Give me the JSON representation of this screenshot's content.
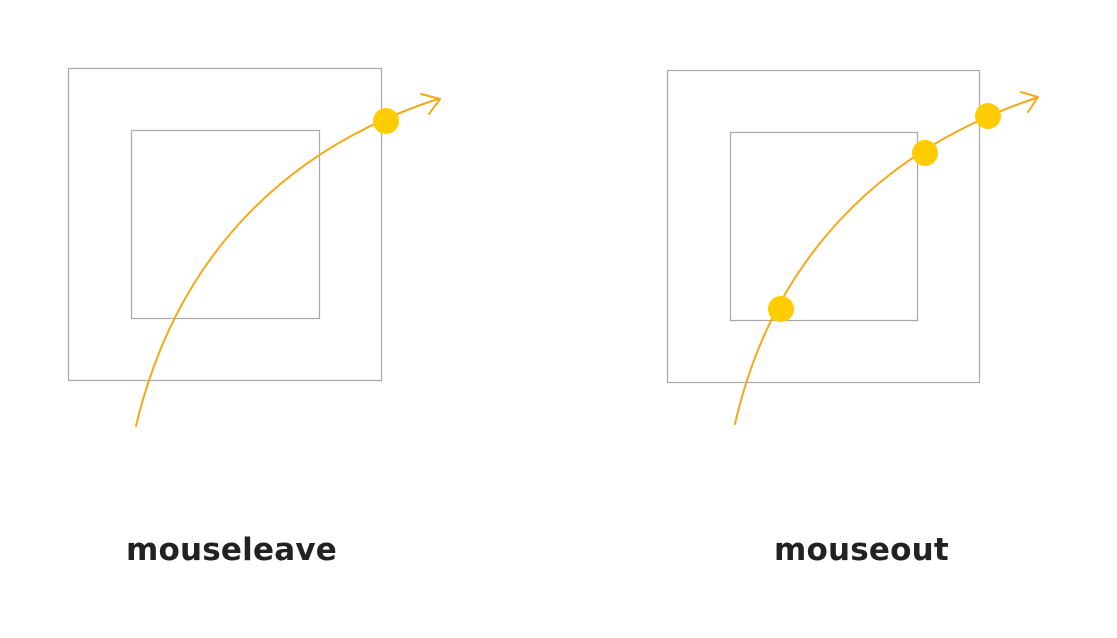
{
  "colors": {
    "box_stroke": "#a9a9a9",
    "path": "#f5a916",
    "dot": "#ffcc00",
    "caption": "#222222",
    "background": "#ffffff"
  },
  "diagrams": [
    {
      "caption": "mouseleave",
      "event_dots": 1
    },
    {
      "caption": "mouseout",
      "event_dots": 3
    }
  ]
}
